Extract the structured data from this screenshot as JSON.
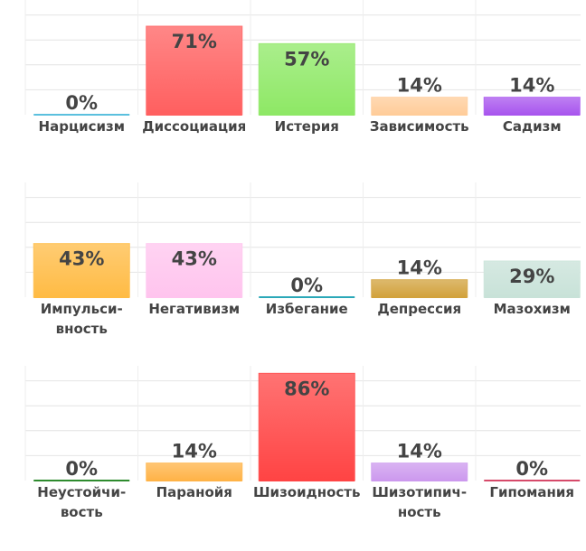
{
  "chart_data": [
    {
      "type": "bar",
      "categories": [
        "Нарцисизм",
        "Диссоциация",
        "Истерия",
        "Зависимость",
        "Садизм"
      ],
      "category_lines": [
        [
          "Нарцисизм"
        ],
        [
          "Диссоциация"
        ],
        [
          "Истерия"
        ],
        [
          "Зависимость"
        ],
        [
          "Садизм"
        ]
      ],
      "values": [
        0,
        71,
        57,
        14,
        14
      ],
      "value_labels": [
        "0%",
        "71%",
        "57%",
        "14%",
        "14%"
      ],
      "colors": [
        "#5bc0de",
        "#ff5f5f",
        "#8ee865",
        "#ffcc99",
        "#a855ee"
      ],
      "ylim": [
        0,
        100
      ],
      "grid": true
    },
    {
      "type": "bar",
      "categories": [
        "Импульсивность",
        "Негативизм",
        "Избегание",
        "Депрессия",
        "Мазохизм"
      ],
      "category_lines": [
        [
          "Импульси-",
          "вность"
        ],
        [
          "Негативизм"
        ],
        [
          "Избегание"
        ],
        [
          "Депрессия"
        ],
        [
          "Мазохизм"
        ]
      ],
      "values": [
        43,
        43,
        0,
        14,
        29
      ],
      "value_labels": [
        "43%",
        "43%",
        "0%",
        "14%",
        "29%"
      ],
      "colors": [
        "#ffbb44",
        "#ffc4ee",
        "#2aa8b8",
        "#d2a23c",
        "#c8e2d8"
      ],
      "ylim": [
        0,
        100
      ],
      "grid": true
    },
    {
      "type": "bar",
      "categories": [
        "Неустойчивость",
        "Паранойя",
        "Шизоидность",
        "Шизотипичность",
        "Гипомания"
      ],
      "category_lines": [
        [
          "Неустойчи-",
          "вость"
        ],
        [
          "Паранойя"
        ],
        [
          "Шизоидность"
        ],
        [
          "Шизотипич-",
          "ность"
        ],
        [
          "Гипомания"
        ]
      ],
      "values": [
        0,
        14,
        86,
        14,
        0
      ],
      "value_labels": [
        "0%",
        "14%",
        "86%",
        "14%",
        "0%"
      ],
      "colors": [
        "#2e8b2e",
        "#ffb347",
        "#ff4444",
        "#cc99ee",
        "#d64a6a"
      ],
      "ylim": [
        0,
        100
      ],
      "grid": true
    }
  ]
}
